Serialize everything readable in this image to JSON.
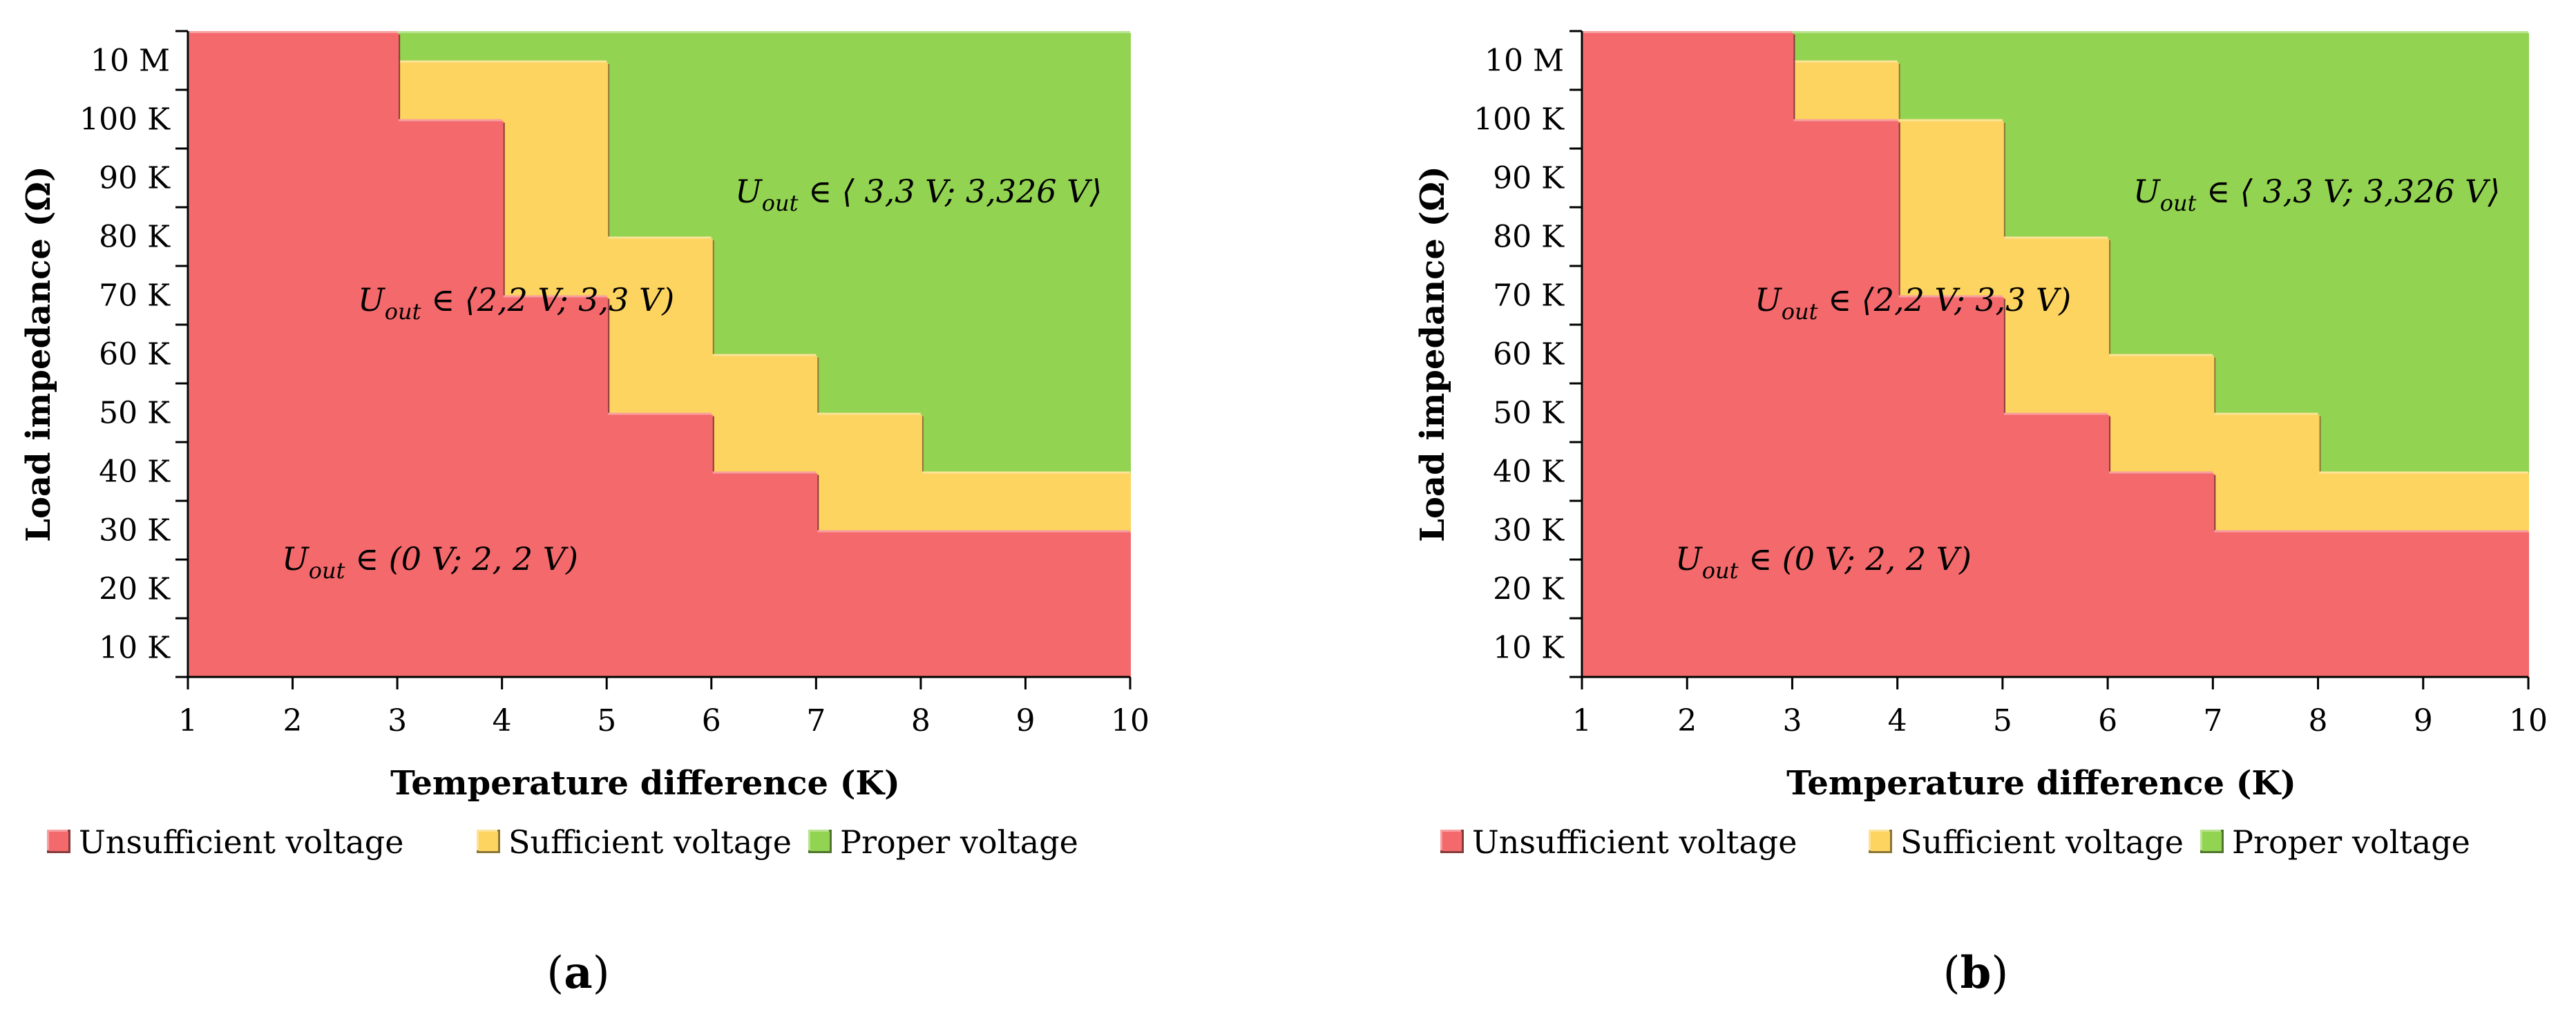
{
  "chart_data": [
    {
      "type": "area",
      "panel_label": "a",
      "xlabel": "Temperature difference (K)",
      "ylabel": "Load impedance (Ω)",
      "x_ticks": [
        "1",
        "2",
        "3",
        "4",
        "5",
        "6",
        "7",
        "8",
        "9",
        "10"
      ],
      "y_ticks": [
        "10 K",
        "20 K",
        "30 K",
        "40 K",
        "50 K",
        "60 K",
        "70 K",
        "80 K",
        "90 K",
        "100 K",
        "10 M"
      ],
      "y_categories_note": "load levels indexed 1..11 = 10K..100K, 10M",
      "series": [
        {
          "name": "Unsufficient voltage",
          "color": "#f4696b",
          "x": [
            1,
            2,
            3,
            4,
            5,
            6,
            7,
            8,
            9,
            10
          ],
          "upper_load_index": [
            11,
            11,
            11,
            9.5,
            6.5,
            4.5,
            3.5,
            2.5,
            2.5,
            2.5
          ]
        },
        {
          "name": "Sufficient voltage",
          "color": "#fcd45f",
          "x": [
            1,
            2,
            3,
            4,
            5,
            6,
            7,
            8,
            9,
            10
          ],
          "upper_load_index": [
            11,
            11,
            11,
            10.5,
            10.5,
            7.5,
            5.5,
            4.5,
            3.5,
            3.5
          ]
        },
        {
          "name": "Proper voltage",
          "color": "#92d451",
          "x": [
            1,
            2,
            3,
            4,
            5,
            6,
            7,
            8,
            9,
            10
          ],
          "upper_load_index": [
            11,
            11,
            11,
            11,
            11,
            11,
            11,
            11,
            11,
            11
          ]
        }
      ],
      "annotations": [
        {
          "region": "Proper voltage",
          "var": "U",
          "sub": "out",
          "text": " ∈ ⟨ 3,3 V; 3,326 V⟩"
        },
        {
          "region": "Sufficient voltage",
          "var": "U",
          "sub": "out",
          "text": " ∈  ⟨2,2 V; 3,3 V)"
        },
        {
          "region": "Unsufficient voltage",
          "var": "U",
          "sub": "out",
          "text": " ∈ (0 V; 2, 2 V)"
        }
      ],
      "legend": [
        "Unsufficient voltage",
        "Sufficient voltage",
        "Proper voltage"
      ],
      "legend_position": "bottom"
    },
    {
      "type": "area",
      "panel_label": "b",
      "xlabel": "Temperature difference (K)",
      "ylabel": "Load impedance (Ω)",
      "x_ticks": [
        "1",
        "2",
        "3",
        "4",
        "5",
        "6",
        "7",
        "8",
        "9",
        "10"
      ],
      "y_ticks": [
        "10 K",
        "20 K",
        "30 K",
        "40 K",
        "50 K",
        "60 K",
        "70 K",
        "80 K",
        "90 K",
        "100 K",
        "10 M"
      ],
      "y_categories_note": "load levels indexed 1..11 = 10K..100K, 10M",
      "series": [
        {
          "name": "Unsufficient voltage",
          "color": "#f4696b",
          "x": [
            1,
            2,
            3,
            4,
            5,
            6,
            7,
            8,
            9,
            10
          ],
          "upper_load_index": [
            11,
            11,
            11,
            9.5,
            6.5,
            4.5,
            3.5,
            2.5,
            2.5,
            2.5
          ]
        },
        {
          "name": "Sufficient voltage",
          "color": "#fcd45f",
          "x": [
            1,
            2,
            3,
            4,
            5,
            6,
            7,
            8,
            9,
            10
          ],
          "upper_load_index": [
            11,
            11,
            11,
            10.5,
            9.5,
            7.5,
            5.5,
            4.5,
            3.5,
            3.5
          ]
        },
        {
          "name": "Proper voltage",
          "color": "#92d451",
          "x": [
            1,
            2,
            3,
            4,
            5,
            6,
            7,
            8,
            9,
            10
          ],
          "upper_load_index": [
            11,
            11,
            11,
            11,
            11,
            11,
            11,
            11,
            11,
            11
          ]
        }
      ],
      "annotations": [
        {
          "region": "Proper voltage",
          "var": "U",
          "sub": "out",
          "text": " ∈ ⟨ 3,3 V; 3,326 V⟩"
        },
        {
          "region": "Sufficient voltage",
          "var": "U",
          "sub": "out",
          "text": " ∈  ⟨2,2 V; 3,3 V)"
        },
        {
          "region": "Unsufficient voltage",
          "var": "U",
          "sub": "out",
          "text": " ∈ (0 V; 2, 2 V)"
        }
      ],
      "legend": [
        "Unsufficient voltage",
        "Sufficient voltage",
        "Proper voltage"
      ],
      "legend_position": "bottom"
    }
  ]
}
